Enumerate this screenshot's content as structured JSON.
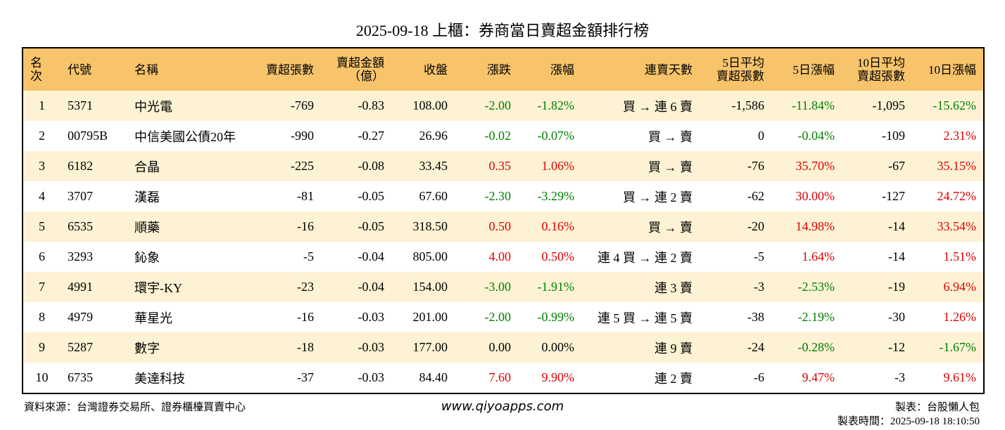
{
  "header": {
    "title": "2025-09-18 上櫃：券商當日賣超金額排行榜"
  },
  "table": {
    "colors": {
      "up": "#e00000",
      "down": "#008000",
      "flat": "#000000",
      "header_bg": "#f7c46c",
      "odd_row_bg": "#fdf2d4",
      "even_row_bg": "#ffffff"
    },
    "columns": [
      {
        "label": "名次",
        "align": "center",
        "colored": false
      },
      {
        "label": "代號",
        "align": "left",
        "colored": false
      },
      {
        "label": "名稱",
        "align": "left",
        "colored": false
      },
      {
        "label": "賣超張數",
        "align": "right",
        "colored": false
      },
      {
        "label": "賣超金額\n（億）",
        "align": "right",
        "colored": false
      },
      {
        "label": "收盤",
        "align": "right",
        "colored": false
      },
      {
        "label": "漲跌",
        "align": "right",
        "colored": true
      },
      {
        "label": "漲幅",
        "align": "right",
        "colored": true
      },
      {
        "label": "連賣天數",
        "align": "right",
        "colored": false
      },
      {
        "label": "5日平均\n賣超張數",
        "align": "right",
        "colored": false
      },
      {
        "label": "5日漲幅",
        "align": "right",
        "colored": true
      },
      {
        "label": "10日平均\n賣超張數",
        "align": "right",
        "colored": false
      },
      {
        "label": "10日漲幅",
        "align": "right",
        "colored": true
      }
    ],
    "rows": [
      [
        "1",
        "5371",
        "中光電",
        "-769",
        "-0.83",
        "108.00",
        "-2.00",
        "-1.82%",
        "買 → 連 6 賣",
        "-1,586",
        "-11.84%",
        "-1,095",
        "-15.62%"
      ],
      [
        "2",
        "00795B",
        "中信美國公債20年",
        "-990",
        "-0.27",
        "26.96",
        "-0.02",
        "-0.07%",
        "買 → 賣",
        "0",
        "-0.04%",
        "-109",
        "2.31%"
      ],
      [
        "3",
        "6182",
        "合晶",
        "-225",
        "-0.08",
        "33.45",
        "0.35",
        "1.06%",
        "買 → 賣",
        "-76",
        "35.70%",
        "-67",
        "35.15%"
      ],
      [
        "4",
        "3707",
        "漢磊",
        "-81",
        "-0.05",
        "67.60",
        "-2.30",
        "-3.29%",
        "買 → 連 2 賣",
        "-62",
        "30.00%",
        "-127",
        "24.72%"
      ],
      [
        "5",
        "6535",
        "順藥",
        "-16",
        "-0.05",
        "318.50",
        "0.50",
        "0.16%",
        "買 → 賣",
        "-20",
        "14.98%",
        "-14",
        "33.54%"
      ],
      [
        "6",
        "3293",
        "鈊象",
        "-5",
        "-0.04",
        "805.00",
        "4.00",
        "0.50%",
        "連 4 買 → 連 2 賣",
        "-5",
        "1.64%",
        "-14",
        "1.51%"
      ],
      [
        "7",
        "4991",
        "環宇-KY",
        "-23",
        "-0.04",
        "154.00",
        "-3.00",
        "-1.91%",
        "連 3 賣",
        "-3",
        "-2.53%",
        "-19",
        "6.94%"
      ],
      [
        "8",
        "4979",
        "華星光",
        "-16",
        "-0.03",
        "201.00",
        "-2.00",
        "-0.99%",
        "連 5 買 → 連 5 賣",
        "-38",
        "-2.19%",
        "-30",
        "1.26%"
      ],
      [
        "9",
        "5287",
        "數字",
        "-18",
        "-0.03",
        "177.00",
        "0.00",
        "0.00%",
        "連 9 賣",
        "-24",
        "-0.28%",
        "-12",
        "-1.67%"
      ],
      [
        "10",
        "6735",
        "美達科技",
        "-37",
        "-0.03",
        "84.40",
        "7.60",
        "9.90%",
        "連 2 賣",
        "-6",
        "9.47%",
        "-3",
        "9.61%"
      ]
    ]
  },
  "footer": {
    "source": "資料來源：台灣證券交易所、證券櫃檯買賣中心",
    "website": "www.qiyoapps.com",
    "author": "製表：台股懶人包",
    "time": "製表時間：2025-09-18 18:10:50"
  }
}
